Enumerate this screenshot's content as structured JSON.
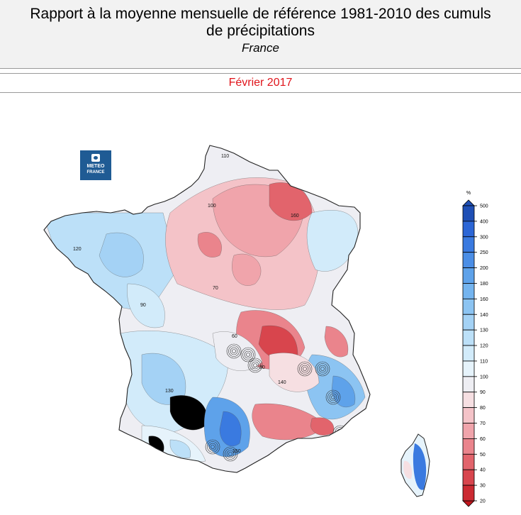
{
  "header": {
    "title_line1": "Rapport à la moyenne mensuelle de référence 1981-2010 des cumuls",
    "title_line2": "de précipitations",
    "subtitle": "France"
  },
  "period": {
    "label": "Février 2017",
    "color": "#e0141b"
  },
  "logo": {
    "line1": "METEO",
    "line2": "FRANCE"
  },
  "legend": {
    "unit": "%",
    "levels": [
      500,
      400,
      300,
      250,
      200,
      180,
      160,
      140,
      130,
      120,
      110,
      100,
      90,
      80,
      70,
      60,
      50,
      40,
      30,
      20
    ],
    "colors": [
      "#1f4fb5",
      "#2c66d6",
      "#3a7ae0",
      "#4b8ee6",
      "#5ea2ea",
      "#74b4ef",
      "#8cc4f2",
      "#a4d2f5",
      "#bce0f8",
      "#d2ebfa",
      "#e6f3fb",
      "#eeeef3",
      "#f6dfe2",
      "#f4c3c8",
      "#f0a4ab",
      "#ea848c",
      "#e2646c",
      "#d8454d",
      "#cc2a32",
      "#c2161d"
    ]
  },
  "map_labels": [
    {
      "text": "110"
    },
    {
      "text": "100"
    },
    {
      "text": "90"
    },
    {
      "text": "80"
    },
    {
      "text": "70"
    },
    {
      "text": "60"
    },
    {
      "text": "120"
    },
    {
      "text": "130"
    },
    {
      "text": "140"
    },
    {
      "text": "150"
    },
    {
      "text": "160"
    }
  ]
}
